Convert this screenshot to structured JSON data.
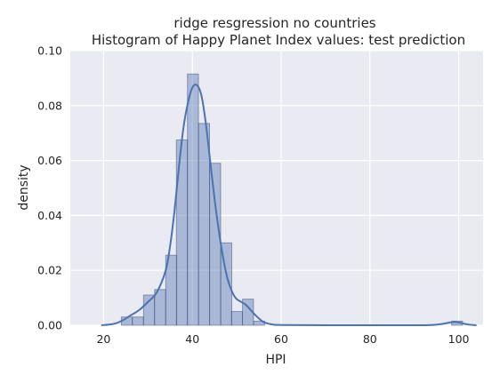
{
  "chart_data": {
    "type": "bar",
    "title": "ridge resgression no countries",
    "subtitle": "Histogram of Happy Planet Index values: test prediction",
    "xlabel": "HPI",
    "ylabel": "density",
    "xlim": [
      12.5,
      105.5
    ],
    "ylim": [
      0,
      0.1
    ],
    "xticks": [
      "20",
      "40",
      "60",
      "80",
      "100"
    ],
    "xtick_values": [
      20,
      40,
      60,
      80,
      100
    ],
    "yticks": [
      "0.00",
      "0.02",
      "0.04",
      "0.06",
      "0.08",
      "0.10"
    ],
    "ytick_values": [
      0,
      0.02,
      0.04,
      0.06,
      0.08,
      0.1
    ],
    "grid": true,
    "bin_width": 2.48,
    "bins": [
      {
        "x": 24.0,
        "value": 0.003
      },
      {
        "x": 26.5,
        "value": 0.003
      },
      {
        "x": 29.0,
        "value": 0.011
      },
      {
        "x": 31.5,
        "value": 0.013
      },
      {
        "x": 34.0,
        "value": 0.0255
      },
      {
        "x": 36.4,
        "value": 0.0675
      },
      {
        "x": 38.9,
        "value": 0.0915
      },
      {
        "x": 41.4,
        "value": 0.0735
      },
      {
        "x": 43.9,
        "value": 0.059
      },
      {
        "x": 46.4,
        "value": 0.03
      },
      {
        "x": 48.8,
        "value": 0.005
      },
      {
        "x": 51.3,
        "value": 0.0095
      },
      {
        "x": 53.8,
        "value": 0.0015
      },
      {
        "x": 98.4,
        "value": 0.0015
      }
    ],
    "kde": {
      "x": [
        19.5,
        22,
        24,
        26,
        28,
        30,
        32,
        34,
        35,
        36,
        37,
        38,
        39,
        40,
        41,
        42,
        43,
        44,
        45,
        46,
        47,
        48,
        49,
        50,
        52,
        54,
        56,
        58,
        60,
        70,
        80,
        90,
        94,
        96,
        98,
        99,
        100,
        102,
        104
      ],
      "y": [
        0.0,
        0.0004,
        0.0015,
        0.0035,
        0.0055,
        0.0085,
        0.012,
        0.02,
        0.029,
        0.042,
        0.058,
        0.072,
        0.081,
        0.0865,
        0.0875,
        0.084,
        0.074,
        0.06,
        0.046,
        0.034,
        0.024,
        0.0165,
        0.012,
        0.0095,
        0.0075,
        0.004,
        0.0012,
        0.0003,
        0.0001,
        0.0,
        0.0,
        0.0,
        0.0001,
        0.0004,
        0.001,
        0.0012,
        0.001,
        0.0003,
        0.0
      ]
    },
    "colors": {
      "plot_bg": "#EAEAF2",
      "grid": "#FFFFFF",
      "bar_fill": "#4C72B0",
      "bar_edge": "#3A4F7A",
      "kde_line": "#4C72B0",
      "text": "#262626"
    }
  }
}
